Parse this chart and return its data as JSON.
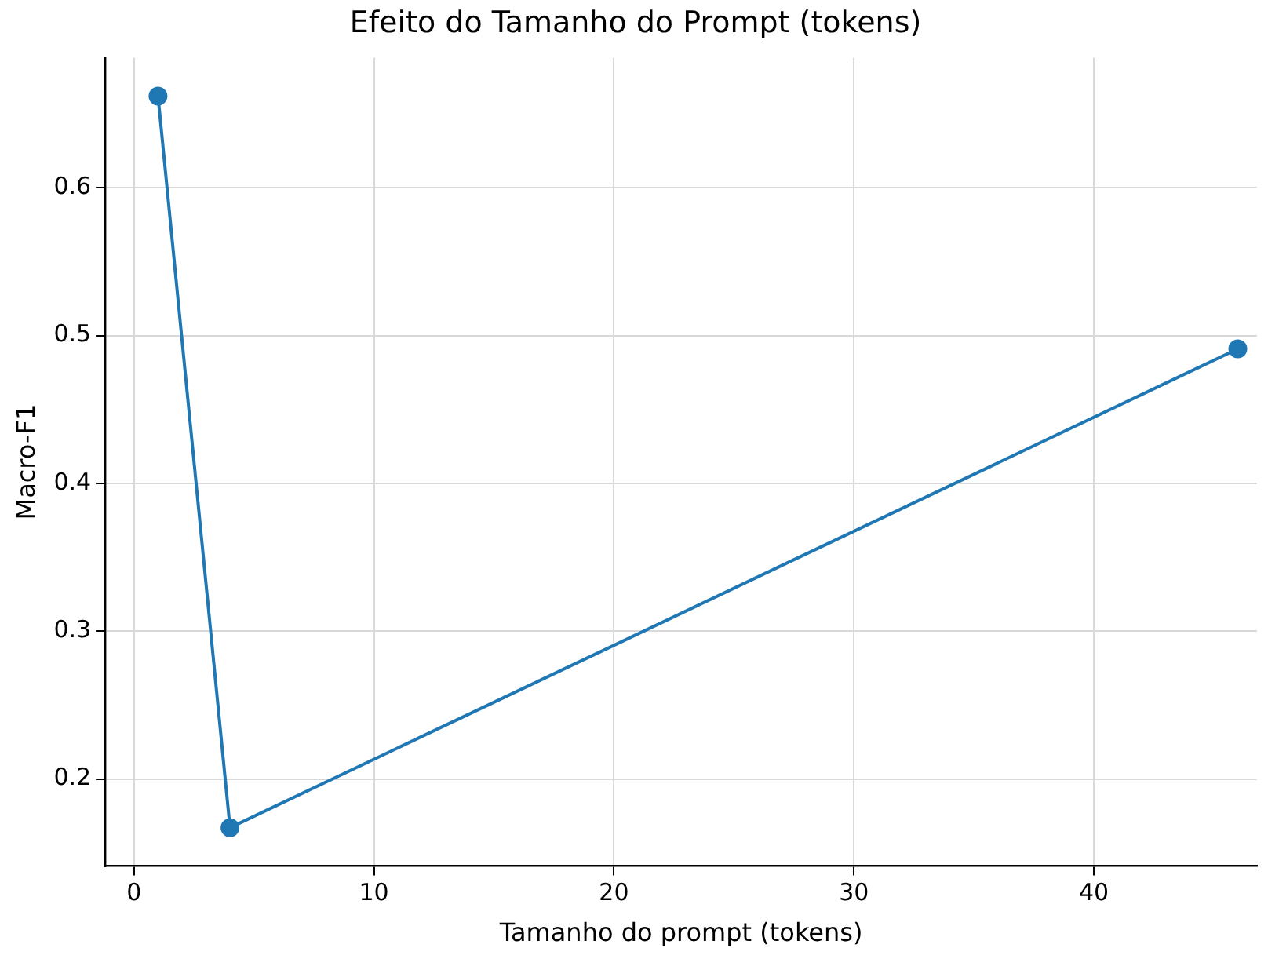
{
  "chart_data": {
    "type": "line",
    "title": "Efeito do Tamanho do Prompt (tokens)",
    "xlabel": "Tamanho do prompt (tokens)",
    "ylabel": "Macro-F1",
    "x": [
      1,
      4,
      46
    ],
    "series": [
      {
        "color": "#1f77b4",
        "values": [
          0.662,
          0.167,
          0.491
        ]
      }
    ],
    "xlim": [
      -1.2,
      46.8
    ],
    "xticks": [
      0,
      10,
      20,
      30,
      40
    ],
    "ylim": [
      0.141,
      0.688
    ],
    "yticks": [
      0.2,
      0.3,
      0.4,
      0.5,
      0.6
    ],
    "grid": true,
    "legend": false,
    "marker": "circle",
    "line_style": "solid"
  }
}
